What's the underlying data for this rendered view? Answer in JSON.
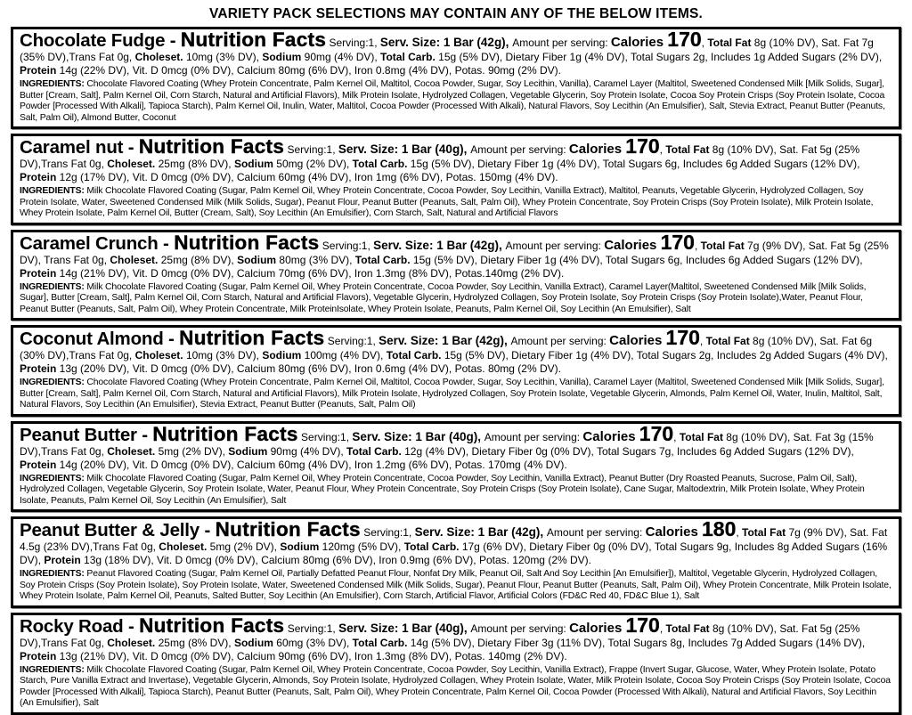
{
  "header": {
    "title": "VARIETY PACK SELECTIONS MAY CONTAIN ANY OF THE BELOW ITEMS."
  },
  "sections": [
    {
      "name": "Chocolate Fudge - ",
      "nf": "Nutrition Facts",
      "serving": " Serving:1, ",
      "servsize": "Serv. Size: 1 Bar (42g), ",
      "amount": " Amount per serving: ",
      "calw": "Calories ",
      "caln": "170",
      "sep": ", ",
      "fatb": "Total Fat",
      "fatr": " 8g (10% DV), Sat. Fat 7g (35% DV),Trans Fat 0g, ",
      "cholb": "Choleset.",
      "cholr": " 10mg (3% DV), ",
      "sodb": "Sodium",
      "sodr": " 90mg (4% DV), ",
      "carbb": "Total Carb.",
      "carbr": " 15g (5% DV), Dietary Fiber 1g (4% DV), Total Sugars 2g, Includes 1g Added Sugars (2% DV), ",
      "protb": "Protein",
      "protr": " 14g (22% DV), Vit. D 0mcg (0% DV), Calcium 80mg (6% DV), Iron 0.8mg (4% DV), Potas. 90mg (2% DV).",
      "ingl": "INGREDIENTS: ",
      "ing": "Chocolate Flavored Coating (Whey Protein Concentrate, Palm Kernel Oil, Maltitol, Cocoa Powder, Sugar, Soy Lecithin, Vanilla), Caramel Layer (Maltitol, Sweetened Condensed Milk [Milk Solids, Sugar], Butter [Cream, Salt], Palm Kernel Oil, Corn Starch, Natural and Artificial Flavors), Milk Protein Isolate, Hydrolyzed Collagen, Vegetable Glycerin, Soy Protein Isolate, Cocoa Soy Protein Crisps (Soy Protein Isolate, Cocoa Powder [Processed With Alkali], Tapioca Starch), Palm Kernel Oil, Inulin, Water, Maltitol, Cocoa Powder (Processed With Alkali), Natural Flavors, Soy Lecithin (An Emulsifier), Salt, Stevia Extract, Peanut Butter (Peanuts, Salt, Palm Oil), Almond Butter, Coconut"
    },
    {
      "name": "Caramel nut - ",
      "nf": "Nutrition Facts",
      "serving": " Serving:1, ",
      "servsize": "Serv. Size: 1 Bar (40g), ",
      "amount": " Amount per serving: ",
      "calw": "Calories ",
      "caln": "170",
      "sep": ", ",
      "fatb": "Total Fat",
      "fatr": " 8g (10% DV), Sat. Fat 5g (25% DV),Trans Fat 0g, ",
      "cholb": "Choleset.",
      "cholr": " 25mg (8% DV), ",
      "sodb": "Sodium",
      "sodr": " 50mg (2% DV), ",
      "carbb": "Total Carb.",
      "carbr": " 15g (5% DV), Dietary Fiber 1g (4% DV), Total Sugars 6g, Includes 6g Added Sugars (12% DV), ",
      "protb": "Protein",
      "protr": " 12g (17% DV), Vit. D 0mcg (0% DV), Calcium 60mg (4% DV), Iron 1mg (6% DV), Potas. 150mg (4% DV).",
      "ingl": "INGREDIENTS: ",
      "ing": "Milk Chocolate Flavored Coating (Sugar, Palm Kernel Oil, Whey Protein Concentrate, Cocoa Powder, Soy Lecithin, Vanilla Extract), Maltitol, Peanuts, Vegetable Glycerin, Hydrolyzed Collagen, Soy Protein Isolate, Water, Sweetened Condensed Milk (Milk Solids, Sugar), Peanut Flour, Peanut Butter (Peanuts, Salt, Palm Oil), Whey Protein Concentrate, Soy Protein Crisps (Soy Protein Isolate), Milk Protein Isolate, Whey Protein Isolate, Palm Kernel Oil, Butter (Cream, Salt), Soy Lecithin (An Emulsifier), Corn Starch, Salt, Natural and Artificial Flavors"
    },
    {
      "name": "Caramel Crunch - ",
      "nf": "Nutrition Facts",
      "serving": " Serving:1, ",
      "servsize": "Serv. Size: 1 Bar (42g), ",
      "amount": " Amount per serving: ",
      "calw": "Calories ",
      "caln": "170",
      "sep": ", ",
      "fatb": "Total Fat",
      "fatr": " 7g (9% DV), Sat. Fat 5g (25% DV), Trans Fat 0g, ",
      "cholb": "Choleset.",
      "cholr": " 25mg (8% DV), ",
      "sodb": "Sodium",
      "sodr": " 80mg (3% DV), ",
      "carbb": "Total Carb.",
      "carbr": " 15g (5% DV), Dietary Fiber 1g (4% DV), Total Sugars 6g, Includes 6g Added Sugars (12% DV), ",
      "protb": "Protein",
      "protr": " 14g (21% DV), Vit. D 0mcg (0% DV), Calcium 70mg (6% DV), Iron 1.3mg (8% DV), Potas.140mg (2% DV).",
      "ingl": "INGREDIENTS: ",
      "ing": "Milk Chocolate Flavored Coating (Sugar, Palm Kernel Oil, Whey Protein Concentrate, Cocoa Powder, Soy Lecithin, Vanilla Extract), Caramel Layer(Maltitol, Sweetened Condensed Milk [Milk Solids, Sugar], Butter [Cream, Salt], Palm Kernel Oil, Corn Starch, Natural and Artificial Flavors), Vegetable Glycerin, Hydrolyzed Collagen, Soy Protein Isolate, Soy Protein Crisps (Soy Protein Isolate),Water, Peanut Flour, Peanut Butter (Peanuts, Salt, Palm Oil), Whey Protein Concentrate, Milk ProteinIsolate, Whey Protein Isolate, Peanuts, Palm Kernel Oil, Soy Lecithin (An Emulsifier), Salt"
    },
    {
      "name": "Coconut Almond - ",
      "nf": "Nutrition Facts",
      "serving": " Serving:1, ",
      "servsize": "Serv. Size: 1 Bar (42g), ",
      "amount": " Amount per serving: ",
      "calw": "Calories ",
      "caln": "170",
      "sep": ", ",
      "fatb": "Total Fat",
      "fatr": " 8g (10% DV), Sat. Fat 6g (30% DV),Trans Fat 0g, ",
      "cholb": "Choleset.",
      "cholr": " 10mg (3% DV), ",
      "sodb": "Sodium",
      "sodr": " 100mg (4% DV), ",
      "carbb": "Total Carb.",
      "carbr": " 15g (5% DV), Dietary Fiber 1g (4% DV), Total Sugars 2g, Includes 2g Added Sugars (4% DV), ",
      "protb": "Protein",
      "protr": " 13g (20% DV), Vit. D 0mcg (0% DV), Calcium 80mg (6% DV), Iron 0.6mg (4% DV), Potas. 80mg (2% DV).",
      "ingl": "INGREDIENTS: ",
      "ing": "Chocolate Flavored Coating (Whey Protein Concentrate, Palm Kernel Oil, Maltitol, Cocoa Powder, Sugar, Soy Lecithin, Vanilla), Caramel Layer (Maltitol, Sweetened Condensed Milk [Milk Solids, Sugar], Butter [Cream, Salt], Palm Kernel Oil, Corn Starch, Natural and Artificial Flavors), Milk Protein Isolate, Hydrolyzed Collagen, Soy Protein Isolate, Vegetable Glycerin, Almonds, Palm Kernel Oil, Water, Inulin, Maltitol, Salt, Natural Flavors, Soy Lecithin (An Emulsifier), Stevia Extract, Peanut Butter (Peanuts, Salt, Palm Oil)"
    },
    {
      "name": "Peanut Butter - ",
      "nf": "Nutrition Facts",
      "serving": " Serving:1, ",
      "servsize": "Serv. Size: 1 Bar (40g), ",
      "amount": " Amount per serving: ",
      "calw": "Calories ",
      "caln": "170",
      "sep": ", ",
      "fatb": "Total Fat",
      "fatr": " 8g (10% DV), Sat. Fat 3g (15% DV),Trans Fat 0g, ",
      "cholb": "Choleset.",
      "cholr": " 5mg (2% DV), ",
      "sodb": "Sodium",
      "sodr": " 90mg (4% DV), ",
      "carbb": "Total Carb.",
      "carbr": " 12g (4% DV), Dietary Fiber 0g (0% DV), Total Sugars 7g, Includes 6g Added Sugars (12% DV), ",
      "protb": "Protein",
      "protr": " 14g (20% DV), Vit. D 0mcg (0% DV), Calcium 60mg (4% DV), Iron 1.2mg (6% DV), Potas. 170mg (4% DV).",
      "ingl": "INGREDIENTS: ",
      "ing": "Milk Chocolate Flavored Coating (Sugar, Palm Kernel Oil, Whey Protein Concentrate, Cocoa Powder, Soy Lecithin, Vanilla Extract), Peanut Butter (Dry Roasted Peanuts, Sucrose, Palm Oil, Salt), Hydrolyzed Collagen, Vegetable Glycerin, Soy Protein Isolate, Water, Peanut Flour, Whey Protein Concentrate, Soy Protein Crisps (Soy Protein Isolate), Cane Sugar, Maltodextrin, Milk Protein Isolate, Whey Protein Isolate, Peanuts, Palm Kernel Oil, Soy Lecithin (An Emulsifier), Salt"
    },
    {
      "name": "Peanut Butter & Jelly - ",
      "nf": "Nutrition Facts",
      "serving": " Serving:1, ",
      "servsize": "Serv. Size: 1 Bar (42g), ",
      "amount": " Amount per serving: ",
      "calw": "Calories ",
      "caln": "180",
      "sep": ", ",
      "fatb": "Total Fat",
      "fatr": " 7g (9% DV), Sat. Fat 4.5g (23% DV),Trans Fat 0g, ",
      "cholb": "Choleset.",
      "cholr": " 5mg (2% DV), ",
      "sodb": "Sodium",
      "sodr": " 120mg (5% DV), ",
      "carbb": "Total Carb.",
      "carbr": " 17g (6% DV), Dietary Fiber 0g (0% DV), Total Sugars 9g, Includes 8g Added Sugars (16% DV), ",
      "protb": "Protein",
      "protr": " 13g (18% DV), Vit. D 0mcg (0% DV), Calcium 80mg (6% DV), Iron 0.9mg (6% DV), Potas. 120mg (2% DV).",
      "ingl": "INGREDIENTS: ",
      "ing": "Peanut Flavored Coating (Sugar, Palm Kernel Oil, Partially Defatted Peanut Flour, Nonfat Dry Milk, Peanut Oil, Salt And Soy Lecithin [An Emulsifier]), Maltitol, Vegetable Glycerin, Hydrolyzed Collagen, Soy Protein Crisps (Soy Protein Isolate), Soy Protein Isolate, Water, Sweetened Condensed Milk (Milk Solids, Sugar), Peanut Flour, Peanut Butter (Peanuts, Salt, Palm Oil), Whey Protein Concentrate, Milk Protein Isolate, Whey Protein Isolate, Palm Kernel Oil, Peanuts, Salted Butter, Soy Lecithin (An Emulsifier), Corn Starch, Artificial Flavor, Artificial Colors (FD&C Red 40, FD&C Blue 1), Salt"
    },
    {
      "name": "Rocky Road - ",
      "nf": "Nutrition Facts",
      "serving": " Serving:1, ",
      "servsize": "Serv. Size: 1 Bar (40g), ",
      "amount": " Amount per serving: ",
      "calw": "Calories ",
      "caln": "170",
      "sep": ", ",
      "fatb": "Total Fat",
      "fatr": " 8g (10% DV), Sat. Fat 5g (25% DV),Trans Fat 0g, ",
      "cholb": "Choleset.",
      "cholr": " 25mg (8% DV), ",
      "sodb": "Sodium",
      "sodr": " 60mg (3% DV), ",
      "carbb": "Total Carb.",
      "carbr": " 14g (5% DV), Dietary Fiber 3g (11% DV), Total Sugars 8g, Includes 7g Added Sugars (14% DV), ",
      "protb": "Protein",
      "protr": " 13g (21% DV), Vit. D 0mcg (0% DV), Calcium 90mg (6% DV), Iron 1.3mg (8% DV), Potas. 140mg (2% DV).",
      "ingl": "INGREDIENTS: ",
      "ing": "Milk Chocolate Flavored Coating (Sugar, Palm Kernel Oil, Whey Protein Concentrate, Cocoa Powder, Soy Lecithin, Vanilla Extract), Frappe (Invert Sugar, Glucose, Water, Whey Protein Isolate, Potato Starch, Pure Vanilla Extract and Invertase), Vegetable Glycerin, Almonds, Soy Protein Isolate, Hydrolyzed Collagen, Whey Protein Isolate, Water, Milk Protein Isolate, Cocoa Soy Protein Crisps (Soy Protein Isolate, Cocoa Powder [Processed With Alkali], Tapioca Starch), Peanut Butter (Peanuts, Salt, Palm Oil), Whey Protein Concentrate, Palm Kernel Oil, Cocoa Powder (Processed With Alkali), Natural and Artificial Flavors, Soy Lecithin (An Emulsifier), Salt"
    }
  ]
}
